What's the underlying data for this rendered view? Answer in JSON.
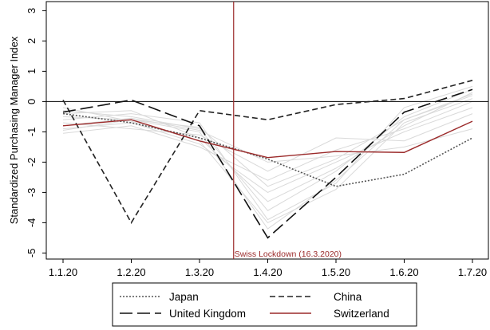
{
  "chart_data": {
    "type": "line",
    "ylabel": "Standardized Purchasing Manager Index",
    "xlabel": "",
    "categories": [
      "1.1.20",
      "1.2.20",
      "1.3.20",
      "1.4.20",
      "1.5.20",
      "1.6.20",
      "1.7.20"
    ],
    "yticks": [
      3,
      2,
      1,
      0,
      -1,
      -2,
      -3,
      -4,
      -5
    ],
    "ylim": [
      -5.2,
      3.3
    ],
    "zero_line": 0,
    "grid": false,
    "legend_position": "bottom",
    "series": [
      {
        "name": "Japan",
        "style": "dotted",
        "color": "#555555",
        "values": [
          -0.4,
          -0.7,
          -1.2,
          -1.9,
          -2.8,
          -2.4,
          -1.2
        ]
      },
      {
        "name": "China",
        "style": "dashed",
        "color": "#222222",
        "values": [
          0.05,
          -4.0,
          -0.3,
          -0.6,
          -0.1,
          0.1,
          0.7
        ]
      },
      {
        "name": "United Kingdom",
        "style": "longdash",
        "color": "#111111",
        "values": [
          -0.35,
          0.05,
          -0.8,
          -4.5,
          -2.5,
          -0.35,
          0.4
        ]
      },
      {
        "name": "Switzerland",
        "style": "solid",
        "color": "#9b2a2a",
        "values": [
          -0.8,
          -0.6,
          -1.3,
          -1.85,
          -1.65,
          -1.68,
          -0.65
        ]
      }
    ],
    "background_series": [
      [
        -0.5,
        -0.6,
        -1.0,
        -4.2,
        -2.6,
        -0.6,
        0.2
      ],
      [
        -0.3,
        -0.5,
        -0.9,
        -3.6,
        -2.3,
        -0.5,
        0.4
      ],
      [
        -0.9,
        -0.7,
        -1.4,
        -3.0,
        -2.0,
        -1.0,
        -0.2
      ],
      [
        -1.05,
        -0.8,
        -1.5,
        -2.6,
        -1.6,
        -0.9,
        0.0
      ],
      [
        -0.6,
        -0.4,
        -0.7,
        -3.9,
        -2.7,
        -0.2,
        0.5
      ],
      [
        -0.7,
        -0.9,
        -1.1,
        -2.3,
        -1.2,
        -1.3,
        -0.4
      ],
      [
        -0.4,
        -0.3,
        -1.2,
        -3.3,
        -2.2,
        -0.8,
        0.3
      ],
      [
        -0.8,
        -0.55,
        -0.95,
        -2.0,
        -1.8,
        -1.5,
        -0.9
      ],
      [
        -0.2,
        -0.65,
        -1.3,
        -4.0,
        -2.9,
        -0.7,
        0.1
      ],
      [
        -0.95,
        -0.6,
        -0.85,
        -2.8,
        -1.9,
        -0.6,
        0.25
      ]
    ],
    "annotation": {
      "label": "Swiss Lockdown (16.3.2020)",
      "x_position": 2.5,
      "color": "#9b2a2a"
    }
  }
}
